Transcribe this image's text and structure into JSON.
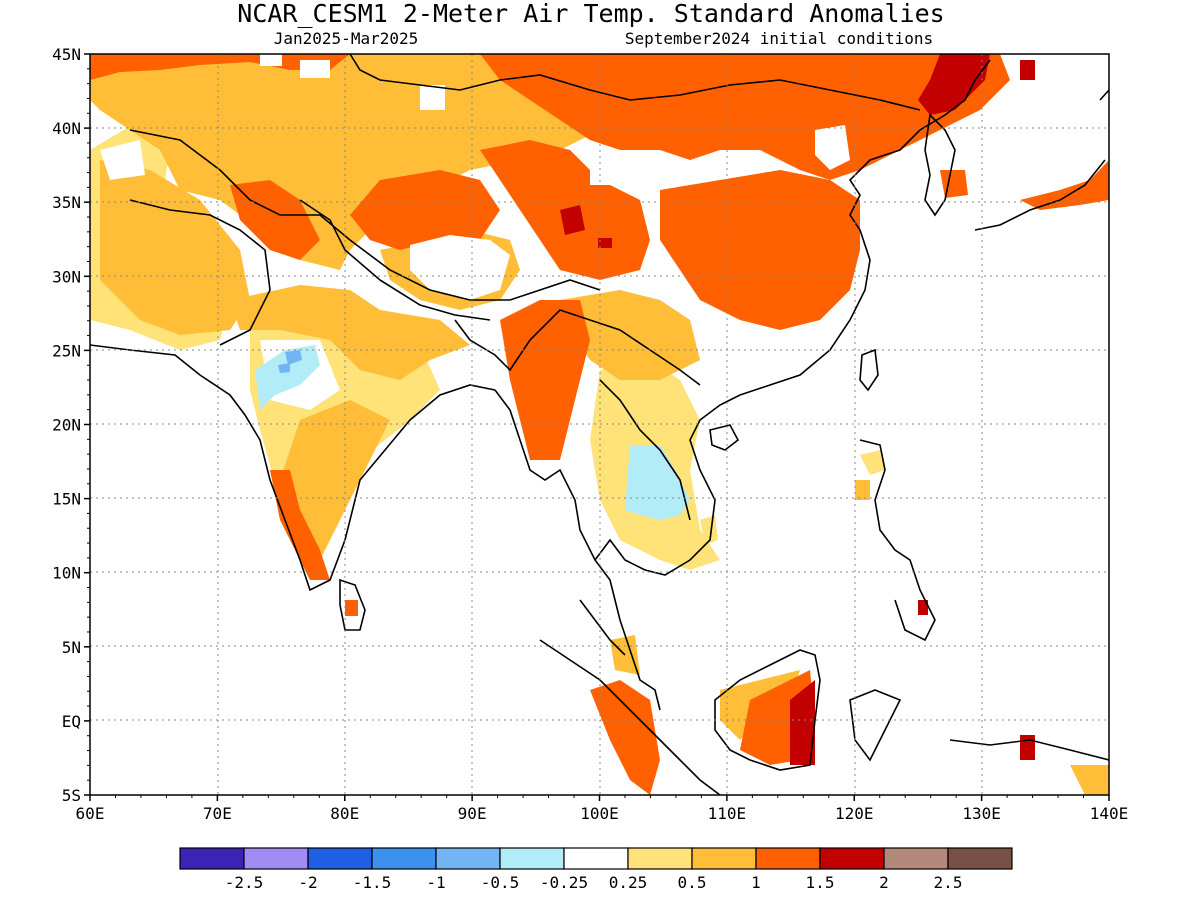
{
  "title": "NCAR_CESM1 2-Meter Air Temp. Standard Anomalies",
  "subtitle_left": "Jan2025-Mar2025",
  "subtitle_right": "September2024 initial conditions",
  "map": {
    "lon_labels": [
      "60E",
      "70E",
      "80E",
      "90E",
      "100E",
      "110E",
      "120E",
      "130E",
      "140E"
    ],
    "lat_labels": [
      "45N",
      "40N",
      "35N",
      "30N",
      "25N",
      "20N",
      "15N",
      "10N",
      "5N",
      "EQ",
      "5S"
    ]
  },
  "legend": {
    "labels": [
      "-2.5",
      "-2",
      "-1.5",
      "-1",
      "-0.5",
      "-0.25",
      "0.25",
      "0.5",
      "1",
      "1.5",
      "2",
      "2.5"
    ],
    "colors": [
      "#3a23b6",
      "#a08cf3",
      "#1f5fe6",
      "#3d8ff0",
      "#73b4f5",
      "#b2ecf7",
      "#ffffff",
      "#ffe278",
      "#ffbd38",
      "#ff6000",
      "#c30000",
      "#b2887a",
      "#785046"
    ]
  }
}
